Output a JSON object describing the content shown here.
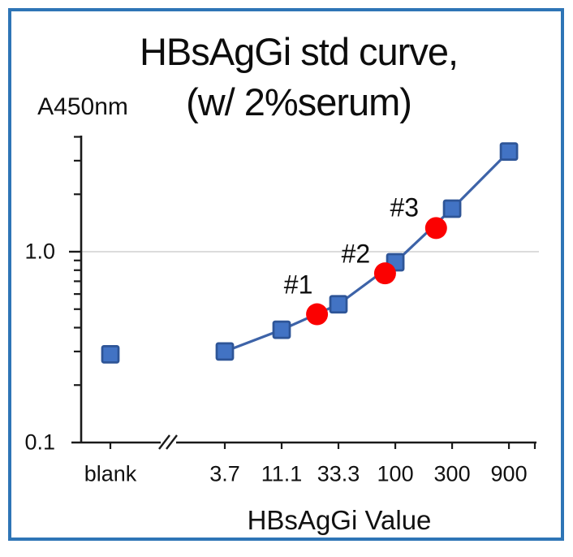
{
  "colors": {
    "frame": "#2E75B6",
    "marker_fill": "#4273C4",
    "marker_border": "#2E5597",
    "line": "#3D63A8",
    "sample_dot": "#FB0101",
    "gridline": "#DCDCDC",
    "axis": "#1A1A1A"
  },
  "chart_data": {
    "type": "line",
    "title": "HBsAgGi std curve, (w/ 2%serum)",
    "title_lines": [
      "HBsAgGi std curve,",
      "(w/ 2%serum)"
    ],
    "y_axis": {
      "label": "A450nm",
      "scale": "log",
      "range": [
        0.1,
        4.0
      ],
      "tick_labels": [
        {
          "value": 1.0,
          "text": "1.0"
        },
        {
          "value": 0.1,
          "text": "0.1"
        }
      ],
      "minor_ticks": [
        0.2,
        0.3,
        0.4,
        0.5,
        0.6,
        0.7,
        0.8,
        0.9,
        2,
        3,
        4
      ],
      "gridline_at": 1.0
    },
    "x_axis": {
      "label": "HBsAgGi Value",
      "scale": "log",
      "categories": [
        "blank",
        "3.7",
        "11.1",
        "33.3",
        "100",
        "300",
        "900"
      ],
      "axis_break_after": "blank"
    },
    "series": [
      {
        "name": "HBsAgGi standard curve",
        "marker": "square",
        "connect_blank": false,
        "values": [
          {
            "x": "blank",
            "a450": 0.29
          },
          {
            "x": "3.7",
            "a450": 0.3
          },
          {
            "x": "11.1",
            "a450": 0.39
          },
          {
            "x": "33.3",
            "a450": 0.53
          },
          {
            "x": "100",
            "a450": 0.88
          },
          {
            "x": "300",
            "a450": 1.68
          },
          {
            "x": "900",
            "a450": 3.35
          }
        ]
      }
    ],
    "sample_points": [
      {
        "label": "#1",
        "value": 22,
        "a450": 0.47
      },
      {
        "label": "#2",
        "value": 82,
        "a450": 0.77
      },
      {
        "label": "#3",
        "value": 220,
        "a450": 1.33
      }
    ],
    "legend": "none",
    "grid": "single horizontal gridline at y=1.0"
  }
}
